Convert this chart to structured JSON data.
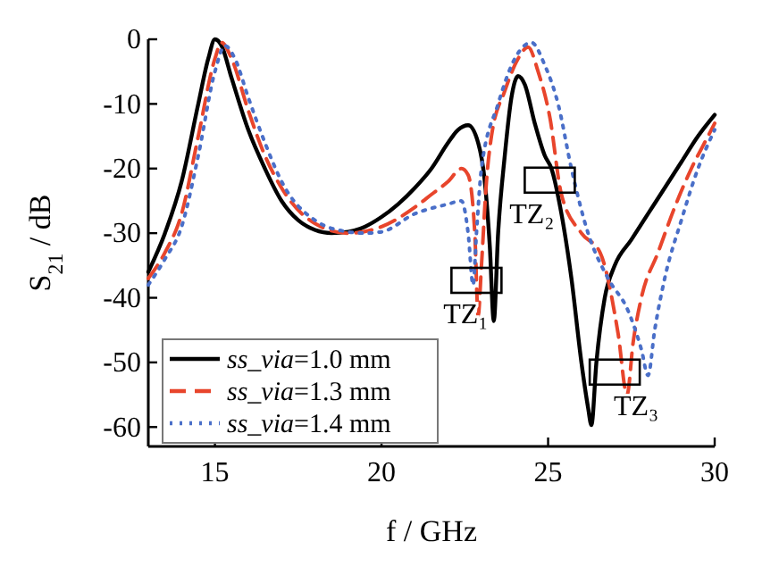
{
  "chart_data": {
    "type": "line",
    "xlabel": "f / GHz",
    "ylabel": "S$_{21}$ / dB",
    "xlim": [
      13,
      30
    ],
    "ylim": [
      -63,
      0
    ],
    "xticks": [
      15,
      20,
      25,
      30
    ],
    "yticks": [
      0,
      -10,
      -20,
      -30,
      -40,
      -50,
      -60
    ],
    "grid": false,
    "legend": "bottom left",
    "marker": "none",
    "series": [
      {
        "name": "ss_via=1.0 mm",
        "color": "#000000",
        "line_style": "solid",
        "x": [
          13,
          13.5,
          14,
          14.5,
          14.8,
          15,
          15.2,
          15.5,
          16,
          16.5,
          17,
          17.5,
          18,
          18.5,
          19,
          19.5,
          20,
          20.5,
          21,
          21.5,
          22,
          22.3,
          22.6,
          22.9,
          23.1,
          23.25,
          23.37,
          23.5,
          23.7,
          23.9,
          24.1,
          24.3,
          24.6,
          24.9,
          25.1,
          25.4,
          25.7,
          26,
          26.2,
          26.3,
          26.45,
          26.7,
          27,
          27.5,
          28,
          28.5,
          29,
          29.5,
          30
        ],
        "values": [
          -36,
          -30,
          -22,
          -10,
          -3,
          0,
          -1,
          -6,
          -14,
          -20,
          -25,
          -28,
          -29.5,
          -30,
          -29.8,
          -29,
          -27.5,
          -25.5,
          -23,
          -20,
          -16,
          -14,
          -13.3,
          -16,
          -22,
          -32,
          -43.6,
          -30,
          -18,
          -9,
          -5.7,
          -7,
          -13,
          -18,
          -20,
          -27,
          -37,
          -50,
          -57,
          -59.7,
          -50,
          -40,
          -35,
          -31,
          -27,
          -23,
          -19,
          -15,
          -11.7
        ]
      },
      {
        "name": "ss_via=1.3 mm",
        "color": "#e8452c",
        "line_style": "dashed",
        "x": [
          13,
          13.5,
          14,
          14.5,
          15,
          15.2,
          15.5,
          16,
          16.5,
          17,
          18,
          19,
          20,
          21,
          21.5,
          22,
          22.4,
          22.6,
          22.8,
          22.9,
          23.0,
          23.15,
          23.3,
          23.7,
          24.1,
          24.4,
          24.7,
          25.05,
          25.4,
          26,
          26.56,
          27.1,
          27.37,
          27.55,
          27.8,
          28.3,
          28.8,
          29.3,
          29.8,
          30
        ],
        "values": [
          -37,
          -33,
          -27,
          -15,
          -3,
          -0.5,
          -3,
          -11,
          -18,
          -23,
          -28.5,
          -30,
          -29,
          -26,
          -24,
          -22,
          -20,
          -21,
          -30,
          -42.8,
          -35,
          -22,
          -15,
          -8,
          -3,
          -1.2,
          -5,
          -12,
          -24,
          -30,
          -33,
          -45.5,
          -55,
          -47,
          -40,
          -33,
          -26,
          -20,
          -15,
          -13
        ]
      },
      {
        "name": "ss_via=1.4 mm",
        "color": "#4a6fc8",
        "line_style": "dotted",
        "x": [
          13,
          13.5,
          14,
          14.5,
          15,
          15.3,
          15.6,
          16,
          16.5,
          17,
          18,
          19,
          19.5,
          20,
          21,
          22,
          22.4,
          22.6,
          22.75,
          22.85,
          23.0,
          23.5,
          24,
          24.5,
          24.9,
          25.3,
          25.7,
          26.2,
          26.8,
          27.4,
          27.8,
          28.0,
          28.2,
          28.5,
          29,
          29.5,
          30
        ],
        "values": [
          -38,
          -34,
          -29,
          -18,
          -5,
          -1,
          -3,
          -9,
          -16,
          -22,
          -28,
          -29.8,
          -30,
          -29.8,
          -27,
          -25.5,
          -25,
          -30,
          -38,
          -30,
          -20,
          -10,
          -3,
          -0.5,
          -4,
          -10,
          -20,
          -30,
          -37,
          -42,
          -48,
          -52,
          -45,
          -37,
          -28,
          -20,
          -14
        ]
      }
    ],
    "annotations": [
      {
        "text": "TZ₁",
        "x": 22.85,
        "y": -37.3
      },
      {
        "text": "TZ₂",
        "x": 25.05,
        "y": -21.8
      },
      {
        "text": "TZ₃",
        "x": 27.0,
        "y": -51.5
      }
    ]
  }
}
